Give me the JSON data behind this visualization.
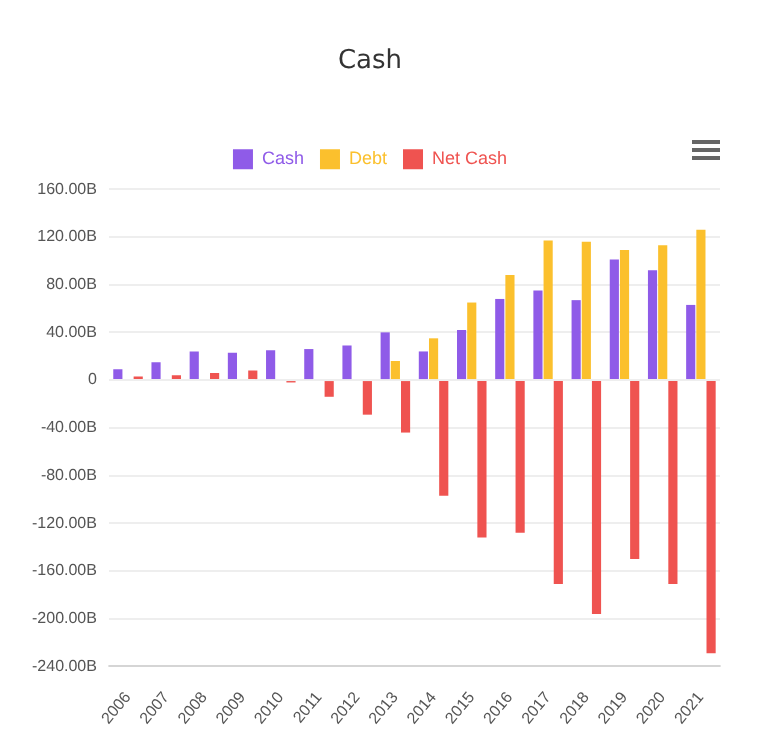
{
  "chart_data": {
    "type": "bar",
    "title": "Cash",
    "categories": [
      "2006",
      "2007",
      "2008",
      "2009",
      "2010",
      "2011",
      "2012",
      "2013",
      "2014",
      "2015",
      "2016",
      "2017",
      "2018",
      "2019",
      "2020",
      "2021"
    ],
    "series": [
      {
        "name": "Cash",
        "color": "#8f5be8",
        "values": [
          9,
          15,
          24,
          23,
          25,
          26,
          29,
          40,
          24,
          42,
          68,
          75,
          67,
          101,
          92,
          63
        ]
      },
      {
        "name": "Debt",
        "color": "#fbc02d",
        "values": [
          0,
          0,
          0,
          0,
          0,
          0,
          0,
          16,
          35,
          65,
          88,
          117,
          116,
          109,
          113,
          126
        ]
      },
      {
        "name": "Net Cash",
        "color": "#ef5350",
        "values": [
          3,
          4,
          6,
          8,
          -2,
          -14,
          -29,
          -44,
          -97,
          -132,
          -128,
          -171,
          -196,
          -150,
          -171,
          -229
        ]
      }
    ],
    "ylim": [
      -240,
      160
    ],
    "yticks": [
      {
        "value": -240,
        "label": "-240.00B"
      },
      {
        "value": -200,
        "label": "-200.00B"
      },
      {
        "value": -160,
        "label": "-160.00B"
      },
      {
        "value": -120,
        "label": "-120.00B"
      },
      {
        "value": -80,
        "label": "-80.00B"
      },
      {
        "value": -40,
        "label": "-40.00B"
      },
      {
        "value": 0,
        "label": "0"
      },
      {
        "value": 40,
        "label": "40.00B"
      },
      {
        "value": 80,
        "label": "80.00B"
      },
      {
        "value": 120,
        "label": "120.00B"
      },
      {
        "value": 160,
        "label": "160.00B"
      }
    ],
    "grid": "y",
    "legend": "top"
  }
}
